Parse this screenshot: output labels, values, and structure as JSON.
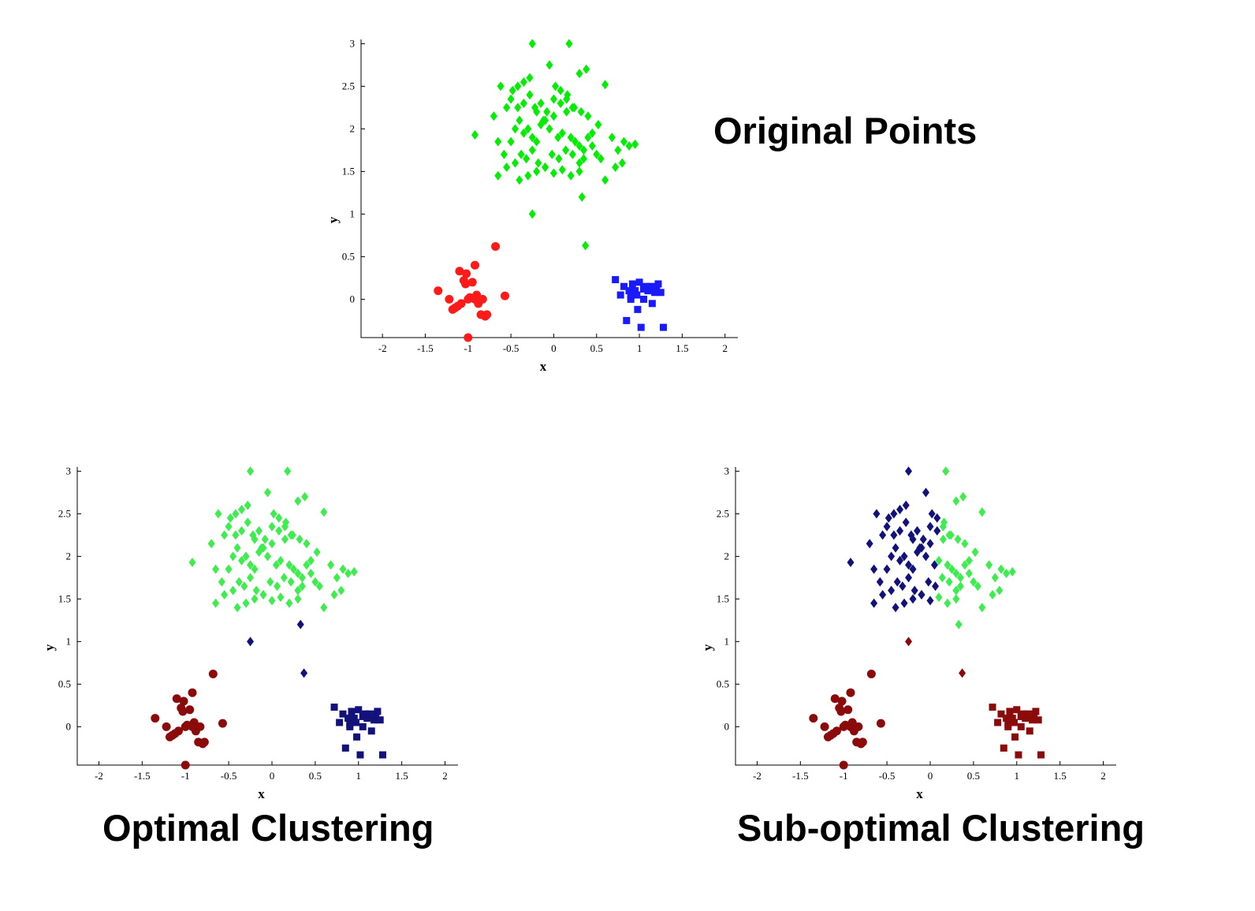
{
  "captions": {
    "original": "Original Points",
    "optimal": "Optimal Clustering",
    "suboptimal": "Sub-optimal Clustering"
  },
  "colors": {
    "original_red": "#ff1a1a",
    "original_green": "#00ee00",
    "original_blue": "#1a1aff",
    "dark_red": "#8b0a0a",
    "light_green": "#3ded4d",
    "dark_blue": "#12127a"
  },
  "chart_data": [
    {
      "id": "original",
      "type": "scatter",
      "title": "Original Points",
      "xlabel": "x",
      "ylabel": "y",
      "xlim": [
        -2.25,
        2.15
      ],
      "ylim": [
        -0.45,
        3.05
      ],
      "xticks": [
        "-2",
        "-1.5",
        "-1",
        "-0.5",
        "0",
        "0.5",
        "1",
        "1.5",
        "2"
      ],
      "yticks": [
        "0",
        "0.5",
        "1",
        "1.5",
        "2",
        "2.5",
        "3"
      ],
      "series": [
        {
          "cluster": "left",
          "marker": "circle",
          "color": "#ff1a1a",
          "x": [
            -1.35,
            -1.22,
            -1.18,
            -1.15,
            -1.12,
            -1.1,
            -1.08,
            -1.05,
            -1.03,
            -1.0,
            -1.0,
            -0.98,
            -0.95,
            -0.92,
            -0.9,
            -0.88,
            -0.85,
            -0.83,
            -0.8,
            -0.78,
            -1.02,
            -0.57,
            -0.68,
            -0.92
          ],
          "y": [
            0.1,
            0.0,
            -0.12,
            -0.1,
            -0.08,
            0.33,
            -0.05,
            0.22,
            0.18,
            0.0,
            -0.45,
            0.02,
            0.2,
            0.4,
            0.05,
            -0.05,
            -0.18,
            0.0,
            -0.2,
            -0.18,
            0.3,
            0.04,
            0.62,
            0.0
          ]
        },
        {
          "cluster": "right",
          "marker": "square",
          "color": "#1a1aff",
          "x": [
            0.72,
            0.78,
            0.82,
            0.85,
            0.88,
            0.9,
            0.92,
            0.95,
            0.97,
            1.0,
            1.02,
            1.05,
            1.08,
            1.1,
            1.12,
            1.15,
            1.18,
            1.2,
            1.22,
            1.25,
            1.28,
            0.98,
            0.9,
            1.05
          ],
          "y": [
            0.23,
            0.05,
            0.15,
            -0.25,
            0.1,
            0.0,
            0.18,
            0.1,
            0.05,
            0.2,
            -0.33,
            0.0,
            0.15,
            0.1,
            0.15,
            -0.05,
            0.08,
            0.15,
            0.18,
            0.08,
            -0.33,
            -0.12,
            0.03,
            0.12
          ]
        },
        {
          "cluster": "top",
          "marker": "diamond",
          "color": "#00ee00",
          "x": [
            -0.25,
            0.18,
            -0.92,
            -0.62,
            -0.55,
            -0.48,
            -0.42,
            -0.35,
            -0.28,
            -0.2,
            -0.12,
            -0.05,
            0.02,
            0.08,
            0.15,
            0.22,
            0.3,
            0.38,
            0.45,
            0.52,
            0.6,
            0.68,
            0.75,
            0.82,
            0.88,
            0.95,
            0.6,
            0.72,
            0.8,
            -0.7,
            -0.65,
            -0.58,
            -0.5,
            -0.45,
            -0.4,
            -0.35,
            -0.3,
            -0.25,
            -0.2,
            -0.15,
            -0.1,
            -0.05,
            0.0,
            0.05,
            0.1,
            0.15,
            0.2,
            0.25,
            0.3,
            0.35,
            0.4,
            0.45,
            0.5,
            0.55,
            -0.65,
            -0.55,
            -0.45,
            -0.38,
            -0.32,
            -0.25,
            -0.18,
            -0.1,
            -0.02,
            0.06,
            0.14,
            0.22,
            0.3,
            0.35,
            -0.5,
            -0.42,
            -0.35,
            -0.28,
            -0.22,
            -0.15,
            -0.08,
            0.0,
            0.08,
            0.16,
            0.24,
            0.32,
            0.4,
            -0.4,
            -0.3,
            -0.2,
            -0.1,
            0.0,
            0.1,
            0.2,
            0.3,
            -0.25,
            0.33,
            0.37
          ],
          "y": [
            3.0,
            3.0,
            1.93,
            2.5,
            2.25,
            2.45,
            2.5,
            2.55,
            2.6,
            2.2,
            2.1,
            2.75,
            2.5,
            2.45,
            2.35,
            2.25,
            2.65,
            2.7,
            1.95,
            2.05,
            2.52,
            1.9,
            1.75,
            1.85,
            1.8,
            1.82,
            1.4,
            1.55,
            1.6,
            2.15,
            1.85,
            1.7,
            1.85,
            2.0,
            2.1,
            1.95,
            2.0,
            1.9,
            1.85,
            2.05,
            2.1,
            2.0,
            2.15,
            1.9,
            1.95,
            2.2,
            1.9,
            1.85,
            1.8,
            1.75,
            1.9,
            1.8,
            1.7,
            1.65,
            1.45,
            1.55,
            1.6,
            1.7,
            1.65,
            1.75,
            1.6,
            1.55,
            1.7,
            1.65,
            1.75,
            1.7,
            1.6,
            1.65,
            2.35,
            2.25,
            2.3,
            2.4,
            2.25,
            2.3,
            2.2,
            2.35,
            2.3,
            2.4,
            2.25,
            2.2,
            2.15,
            1.4,
            1.45,
            1.5,
            1.55,
            1.48,
            1.52,
            1.45,
            1.5,
            1.0,
            1.2,
            0.63
          ]
        }
      ]
    },
    {
      "id": "optimal",
      "type": "scatter",
      "title": "Optimal Clustering",
      "xlabel": "x",
      "ylabel": "y",
      "xlim": [
        -2.25,
        2.15
      ],
      "ylim": [
        -0.45,
        3.05
      ],
      "xticks": [
        "-2",
        "-1.5",
        "-1",
        "-0.5",
        "0",
        "0.5",
        "1",
        "1.5",
        "2"
      ],
      "yticks": [
        "0",
        "0.5",
        "1",
        "1.5",
        "2",
        "2.5",
        "3"
      ],
      "note": "same points as original; left cluster dark red, top cluster light green, right cluster plus two outlying diamonds dark blue"
    },
    {
      "id": "suboptimal",
      "type": "scatter",
      "title": "Sub-optimal Clustering",
      "xlabel": "x",
      "ylabel": "y",
      "xlim": [
        -2.25,
        2.15
      ],
      "ylim": [
        -0.45,
        3.05
      ],
      "xticks": [
        "-2",
        "-1.5",
        "-1",
        "-0.5",
        "0",
        "0.5",
        "1",
        "1.5",
        "2"
      ],
      "yticks": [
        "0",
        "0.5",
        "1",
        "1.5",
        "2",
        "2.5",
        "3"
      ],
      "note": "same points; left and right bottom clusters plus lowest two diamonds dark red, top cluster split at x≈0: left part dark blue, right part light green"
    }
  ]
}
